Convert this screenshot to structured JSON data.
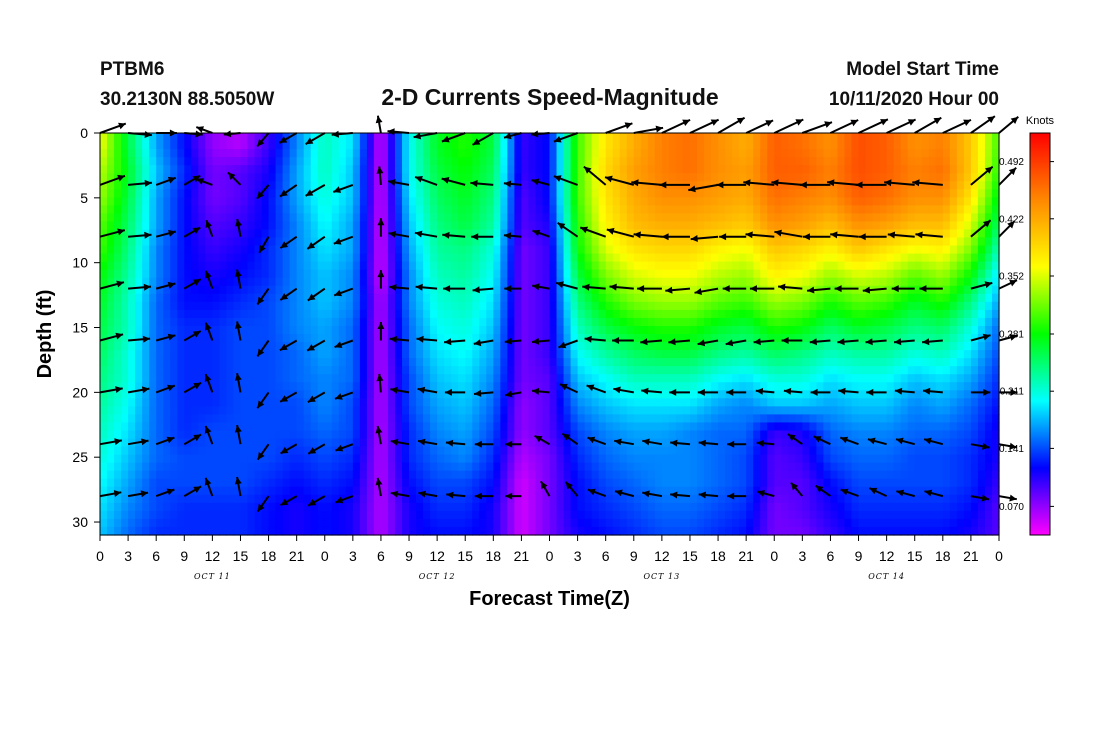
{
  "header": {
    "station": "PTBM6",
    "coords": "30.2130N 88.5050W",
    "title": "2-D Currents Speed-Magnitude",
    "start_label": "Model Start Time",
    "start_value": "10/11/2020 Hour 00"
  },
  "chart_data": {
    "type": "heatmap",
    "title": "2-D Currents Speed-Magnitude",
    "xlabel": "Forecast Time(Z)",
    "ylabel": "Depth (ft)",
    "x_range_hours": [
      0,
      96
    ],
    "y_range": [
      0,
      31
    ],
    "y_ticks": [
      "0",
      "5",
      "10",
      "15",
      "20",
      "25",
      "30"
    ],
    "y_tick_values": [
      0,
      5,
      10,
      15,
      20,
      25,
      30
    ],
    "x_tick_labels": [
      "0",
      "3",
      "6",
      "9",
      "12",
      "15",
      "18",
      "21",
      "0",
      "3",
      "6",
      "9",
      "12",
      "15",
      "18",
      "21",
      "0",
      "3",
      "6",
      "9",
      "12",
      "15",
      "18",
      "21",
      "0",
      "3",
      "6",
      "9",
      "12",
      "15",
      "18",
      "21",
      "0"
    ],
    "day_labels": [
      "OCT 11",
      "OCT 12",
      "OCT 13",
      "OCT 14"
    ],
    "colorbar": {
      "title": "Knots",
      "tick_labels": [
        "0.492",
        "0.422",
        "0.352",
        "0.281",
        "0.211",
        "0.141",
        "0.070"
      ],
      "tick_values": [
        0.492,
        0.422,
        0.352,
        0.281,
        0.211,
        0.141,
        0.07
      ],
      "range": [
        0.035,
        0.527
      ],
      "colors": [
        "#ff00ff",
        "#0000ff",
        "#00ffff",
        "#00ff00",
        "#ffff00",
        "#ff8800",
        "#ff0000"
      ]
    },
    "depths_ft": [
      1,
      3,
      5,
      7,
      9,
      11,
      13,
      15,
      17,
      19,
      21,
      23,
      25,
      27,
      29,
      31
    ],
    "time_hours": [
      0,
      3,
      6,
      9,
      12,
      15,
      18,
      21,
      24,
      27,
      30,
      33,
      36,
      39,
      42,
      45,
      48,
      51,
      54,
      57,
      60,
      63,
      66,
      69,
      72,
      75,
      78,
      81,
      84,
      87,
      90,
      93,
      96
    ],
    "speed_grid": [
      [
        0.36,
        0.26,
        0.17,
        0.12,
        0.07,
        0.06,
        0.1,
        0.16,
        0.22,
        0.19,
        0.05,
        0.2,
        0.27,
        0.29,
        0.26,
        0.1,
        0.12,
        0.3,
        0.38,
        0.42,
        0.45,
        0.46,
        0.44,
        0.42,
        0.47,
        0.46,
        0.44,
        0.48,
        0.47,
        0.44,
        0.45,
        0.4,
        0.3
      ],
      [
        0.34,
        0.27,
        0.18,
        0.13,
        0.08,
        0.09,
        0.11,
        0.17,
        0.22,
        0.18,
        0.05,
        0.2,
        0.26,
        0.28,
        0.25,
        0.1,
        0.12,
        0.3,
        0.39,
        0.43,
        0.45,
        0.46,
        0.44,
        0.43,
        0.47,
        0.47,
        0.45,
        0.48,
        0.47,
        0.45,
        0.46,
        0.4,
        0.29
      ],
      [
        0.33,
        0.26,
        0.17,
        0.12,
        0.08,
        0.09,
        0.12,
        0.17,
        0.21,
        0.18,
        0.05,
        0.19,
        0.25,
        0.27,
        0.24,
        0.09,
        0.12,
        0.3,
        0.38,
        0.42,
        0.44,
        0.44,
        0.43,
        0.42,
        0.46,
        0.45,
        0.44,
        0.47,
        0.46,
        0.44,
        0.44,
        0.38,
        0.27
      ],
      [
        0.31,
        0.25,
        0.17,
        0.12,
        0.09,
        0.1,
        0.12,
        0.16,
        0.2,
        0.17,
        0.05,
        0.18,
        0.24,
        0.26,
        0.23,
        0.09,
        0.11,
        0.29,
        0.37,
        0.41,
        0.42,
        0.42,
        0.41,
        0.4,
        0.44,
        0.43,
        0.41,
        0.44,
        0.43,
        0.41,
        0.41,
        0.35,
        0.25
      ],
      [
        0.3,
        0.24,
        0.16,
        0.12,
        0.1,
        0.11,
        0.13,
        0.16,
        0.19,
        0.17,
        0.05,
        0.17,
        0.23,
        0.24,
        0.21,
        0.08,
        0.1,
        0.28,
        0.35,
        0.38,
        0.39,
        0.39,
        0.37,
        0.36,
        0.4,
        0.39,
        0.37,
        0.4,
        0.38,
        0.36,
        0.37,
        0.32,
        0.22
      ],
      [
        0.28,
        0.23,
        0.16,
        0.12,
        0.11,
        0.12,
        0.13,
        0.16,
        0.18,
        0.16,
        0.05,
        0.16,
        0.22,
        0.23,
        0.2,
        0.08,
        0.1,
        0.26,
        0.32,
        0.35,
        0.36,
        0.36,
        0.34,
        0.33,
        0.37,
        0.36,
        0.33,
        0.35,
        0.34,
        0.31,
        0.33,
        0.28,
        0.19
      ],
      [
        0.27,
        0.22,
        0.15,
        0.12,
        0.12,
        0.13,
        0.14,
        0.16,
        0.18,
        0.16,
        0.06,
        0.16,
        0.21,
        0.22,
        0.19,
        0.08,
        0.1,
        0.24,
        0.29,
        0.32,
        0.33,
        0.33,
        0.31,
        0.3,
        0.33,
        0.32,
        0.29,
        0.31,
        0.3,
        0.27,
        0.29,
        0.24,
        0.17
      ],
      [
        0.26,
        0.22,
        0.15,
        0.13,
        0.13,
        0.14,
        0.14,
        0.16,
        0.17,
        0.15,
        0.06,
        0.15,
        0.2,
        0.21,
        0.18,
        0.08,
        0.1,
        0.22,
        0.26,
        0.28,
        0.29,
        0.29,
        0.27,
        0.26,
        0.29,
        0.28,
        0.25,
        0.27,
        0.26,
        0.24,
        0.25,
        0.21,
        0.15
      ],
      [
        0.25,
        0.21,
        0.15,
        0.13,
        0.13,
        0.14,
        0.14,
        0.15,
        0.17,
        0.15,
        0.06,
        0.15,
        0.19,
        0.2,
        0.17,
        0.08,
        0.1,
        0.2,
        0.23,
        0.25,
        0.26,
        0.26,
        0.24,
        0.23,
        0.25,
        0.24,
        0.22,
        0.23,
        0.23,
        0.21,
        0.22,
        0.19,
        0.14
      ],
      [
        0.24,
        0.21,
        0.15,
        0.13,
        0.13,
        0.14,
        0.14,
        0.15,
        0.16,
        0.15,
        0.06,
        0.14,
        0.18,
        0.19,
        0.16,
        0.08,
        0.09,
        0.18,
        0.2,
        0.22,
        0.22,
        0.22,
        0.2,
        0.19,
        0.21,
        0.21,
        0.19,
        0.2,
        0.2,
        0.18,
        0.19,
        0.17,
        0.13
      ],
      [
        0.23,
        0.2,
        0.15,
        0.13,
        0.13,
        0.14,
        0.14,
        0.14,
        0.16,
        0.14,
        0.06,
        0.14,
        0.17,
        0.18,
        0.15,
        0.07,
        0.09,
        0.16,
        0.18,
        0.19,
        0.19,
        0.19,
        0.17,
        0.16,
        0.18,
        0.18,
        0.17,
        0.18,
        0.18,
        0.16,
        0.17,
        0.15,
        0.12
      ],
      [
        0.22,
        0.19,
        0.15,
        0.13,
        0.14,
        0.14,
        0.14,
        0.14,
        0.15,
        0.14,
        0.06,
        0.13,
        0.16,
        0.17,
        0.14,
        0.07,
        0.09,
        0.14,
        0.16,
        0.17,
        0.17,
        0.16,
        0.15,
        0.15,
        0.1,
        0.11,
        0.15,
        0.16,
        0.16,
        0.15,
        0.15,
        0.14,
        0.11
      ],
      [
        0.21,
        0.18,
        0.15,
        0.14,
        0.14,
        0.14,
        0.14,
        0.13,
        0.14,
        0.13,
        0.06,
        0.13,
        0.15,
        0.16,
        0.13,
        0.06,
        0.08,
        0.13,
        0.15,
        0.16,
        0.16,
        0.16,
        0.15,
        0.14,
        0.09,
        0.1,
        0.14,
        0.15,
        0.15,
        0.14,
        0.14,
        0.13,
        0.11
      ],
      [
        0.2,
        0.17,
        0.14,
        0.14,
        0.14,
        0.14,
        0.13,
        0.12,
        0.13,
        0.12,
        0.06,
        0.12,
        0.14,
        0.14,
        0.12,
        0.05,
        0.08,
        0.12,
        0.14,
        0.15,
        0.16,
        0.16,
        0.15,
        0.14,
        0.09,
        0.09,
        0.12,
        0.14,
        0.14,
        0.14,
        0.14,
        0.13,
        0.1
      ],
      [
        0.19,
        0.16,
        0.14,
        0.13,
        0.13,
        0.13,
        0.12,
        0.11,
        0.12,
        0.11,
        0.06,
        0.11,
        0.13,
        0.13,
        0.11,
        0.05,
        0.08,
        0.12,
        0.13,
        0.14,
        0.15,
        0.15,
        0.14,
        0.13,
        0.08,
        0.09,
        0.11,
        0.13,
        0.13,
        0.13,
        0.13,
        0.12,
        0.09
      ],
      [
        0.18,
        0.15,
        0.13,
        0.13,
        0.13,
        0.13,
        0.12,
        0.11,
        0.12,
        0.11,
        0.06,
        0.11,
        0.12,
        0.12,
        0.11,
        0.05,
        0.08,
        0.11,
        0.12,
        0.13,
        0.14,
        0.14,
        0.13,
        0.12,
        0.08,
        0.08,
        0.1,
        0.12,
        0.12,
        0.12,
        0.12,
        0.11,
        0.09
      ]
    ],
    "vector_times": [
      0,
      3,
      6,
      9,
      12,
      15,
      18,
      21,
      24,
      27,
      30,
      33,
      36,
      39,
      42,
      45,
      48,
      51,
      54,
      57,
      60,
      63,
      66,
      69,
      72,
      75,
      78,
      81,
      84,
      87,
      90,
      93,
      96
    ],
    "vector_depths_ft": [
      0,
      4,
      8,
      12,
      16,
      20,
      24,
      28
    ],
    "vector_dir_deg": [
      [
        -20,
        5,
        0,
        5,
        200,
        175,
        130,
        150,
        150,
        175,
        260,
        185,
        170,
        160,
        150,
        165,
        175,
        160,
        -20,
        -10,
        -25,
        -25,
        -30,
        -25,
        -25,
        -20,
        -25,
        -25,
        -25,
        -30,
        -25,
        -35,
        -40
      ],
      [
        -20,
        -5,
        -20,
        -30,
        200,
        225,
        130,
        145,
        150,
        160,
        265,
        190,
        200,
        195,
        185,
        185,
        195,
        200,
        220,
        195,
        185,
        180,
        170,
        180,
        185,
        185,
        180,
        185,
        180,
        185,
        185,
        -40,
        -45
      ],
      [
        -15,
        -5,
        -15,
        -30,
        250,
        260,
        120,
        145,
        145,
        160,
        270,
        190,
        190,
        185,
        180,
        185,
        200,
        215,
        200,
        195,
        185,
        180,
        175,
        180,
        185,
        190,
        180,
        185,
        180,
        185,
        185,
        -40,
        -45
      ],
      [
        -15,
        -5,
        -15,
        -30,
        250,
        260,
        125,
        145,
        145,
        160,
        270,
        185,
        185,
        180,
        175,
        180,
        190,
        195,
        185,
        185,
        180,
        175,
        170,
        180,
        180,
        185,
        175,
        180,
        175,
        180,
        180,
        -15,
        -25
      ],
      [
        -15,
        -5,
        -15,
        -30,
        250,
        260,
        125,
        150,
        150,
        160,
        270,
        185,
        185,
        175,
        170,
        175,
        175,
        160,
        185,
        180,
        175,
        175,
        170,
        170,
        175,
        180,
        175,
        175,
        175,
        175,
        175,
        -15,
        -15
      ],
      [
        -10,
        -10,
        -20,
        -30,
        250,
        260,
        125,
        150,
        150,
        160,
        265,
        190,
        190,
        180,
        175,
        170,
        185,
        205,
        200,
        190,
        185,
        180,
        180,
        180,
        185,
        185,
        180,
        185,
        180,
        185,
        185,
        0,
        0
      ],
      [
        -10,
        -10,
        -20,
        -30,
        250,
        260,
        125,
        150,
        150,
        160,
        260,
        190,
        190,
        185,
        180,
        180,
        210,
        215,
        200,
        190,
        190,
        185,
        185,
        180,
        185,
        215,
        205,
        200,
        195,
        195,
        195,
        10,
        10
      ],
      [
        -10,
        -10,
        -20,
        -30,
        250,
        260,
        125,
        150,
        150,
        160,
        260,
        190,
        190,
        185,
        180,
        180,
        240,
        230,
        200,
        195,
        190,
        185,
        185,
        180,
        195,
        230,
        215,
        200,
        205,
        195,
        195,
        10,
        10
      ]
    ],
    "vector_speed": [
      [
        0.3,
        0.22,
        0.15,
        0.1,
        0.07,
        0.06,
        0.08,
        0.13,
        0.18,
        0.16,
        0.08,
        0.17,
        0.22,
        0.24,
        0.22,
        0.09,
        0.1,
        0.25,
        0.32,
        0.35,
        0.38,
        0.39,
        0.37,
        0.35,
        0.4,
        0.39,
        0.37,
        0.41,
        0.4,
        0.37,
        0.38,
        0.34,
        0.25
      ],
      [
        0.28,
        0.22,
        0.15,
        0.1,
        0.07,
        0.08,
        0.09,
        0.14,
        0.18,
        0.15,
        0.1,
        0.16,
        0.21,
        0.23,
        0.2,
        0.08,
        0.1,
        0.25,
        0.32,
        0.35,
        0.37,
        0.37,
        0.36,
        0.35,
        0.38,
        0.38,
        0.37,
        0.39,
        0.38,
        0.37,
        0.37,
        0.32,
        0.23
      ],
      [
        0.26,
        0.21,
        0.14,
        0.1,
        0.08,
        0.09,
        0.1,
        0.13,
        0.16,
        0.14,
        0.1,
        0.15,
        0.19,
        0.2,
        0.18,
        0.08,
        0.09,
        0.23,
        0.29,
        0.31,
        0.32,
        0.32,
        0.3,
        0.29,
        0.33,
        0.32,
        0.3,
        0.32,
        0.31,
        0.29,
        0.3,
        0.26,
        0.18
      ],
      [
        0.24,
        0.2,
        0.13,
        0.11,
        0.11,
        0.12,
        0.12,
        0.13,
        0.15,
        0.13,
        0.1,
        0.13,
        0.17,
        0.18,
        0.15,
        0.07,
        0.08,
        0.18,
        0.21,
        0.23,
        0.24,
        0.24,
        0.22,
        0.21,
        0.23,
        0.23,
        0.21,
        0.22,
        0.22,
        0.2,
        0.21,
        0.18,
        0.13
      ],
      [
        0.22,
        0.18,
        0.13,
        0.11,
        0.11,
        0.12,
        0.12,
        0.12,
        0.14,
        0.12,
        0.1,
        0.12,
        0.15,
        0.16,
        0.13,
        0.06,
        0.08,
        0.14,
        0.16,
        0.17,
        0.17,
        0.17,
        0.15,
        0.15,
        0.15,
        0.15,
        0.15,
        0.16,
        0.16,
        0.15,
        0.15,
        0.14,
        0.11
      ],
      [
        0.2,
        0.17,
        0.13,
        0.12,
        0.12,
        0.12,
        0.12,
        0.11,
        0.12,
        0.11,
        0.1,
        0.11,
        0.13,
        0.14,
        0.12,
        0.06,
        0.08,
        0.12,
        0.14,
        0.15,
        0.15,
        0.15,
        0.14,
        0.13,
        0.1,
        0.1,
        0.13,
        0.14,
        0.14,
        0.13,
        0.13,
        0.12,
        0.1
      ],
      [
        0.18,
        0.15,
        0.12,
        0.12,
        0.12,
        0.12,
        0.11,
        0.1,
        0.11,
        0.1,
        0.1,
        0.1,
        0.12,
        0.12,
        0.1,
        0.05,
        0.07,
        0.1,
        0.12,
        0.13,
        0.13,
        0.13,
        0.12,
        0.11,
        0.08,
        0.08,
        0.1,
        0.12,
        0.12,
        0.12,
        0.12,
        0.11,
        0.09
      ],
      [
        0.17,
        0.14,
        0.12,
        0.12,
        0.12,
        0.12,
        0.11,
        0.1,
        0.11,
        0.1,
        0.1,
        0.1,
        0.11,
        0.11,
        0.1,
        0.05,
        0.07,
        0.1,
        0.11,
        0.12,
        0.13,
        0.13,
        0.12,
        0.11,
        0.08,
        0.08,
        0.09,
        0.11,
        0.11,
        0.11,
        0.11,
        0.1,
        0.09
      ]
    ]
  }
}
